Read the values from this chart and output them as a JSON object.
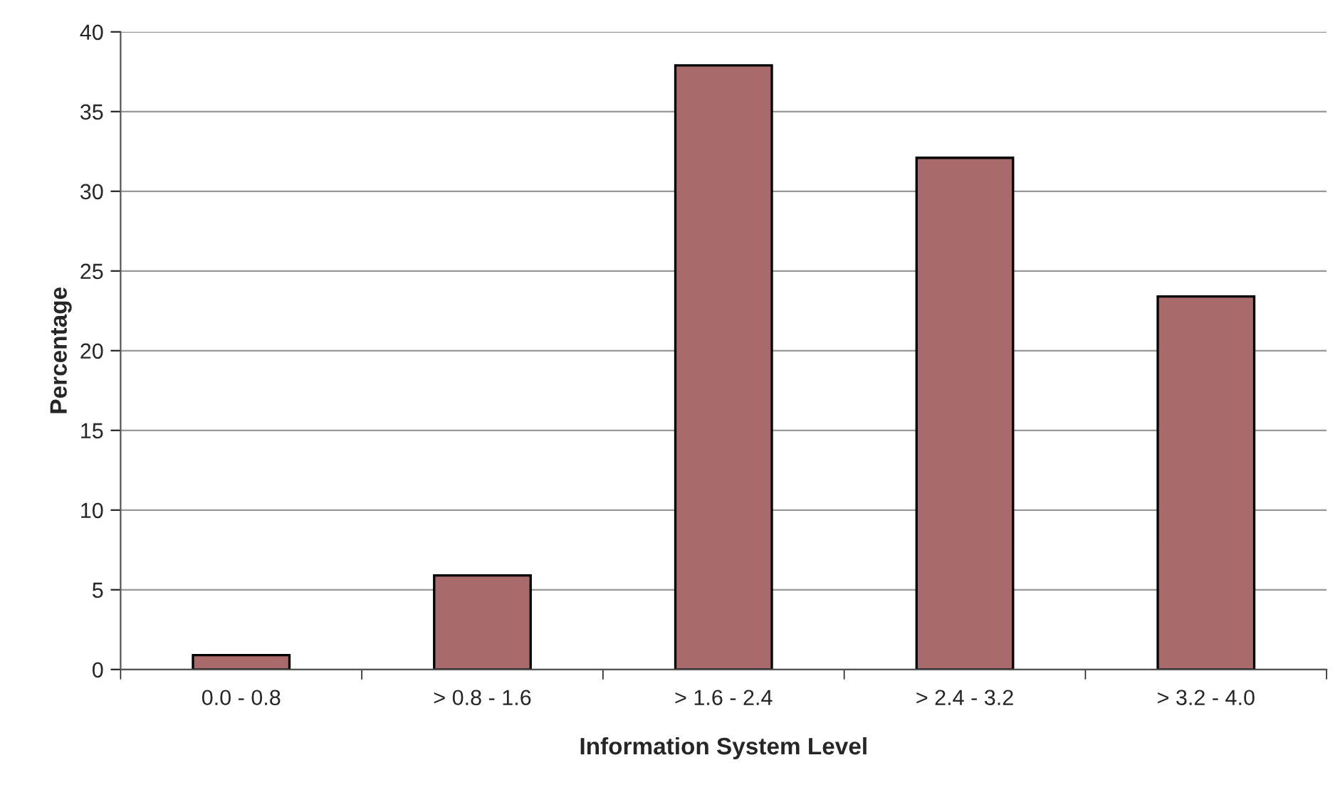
{
  "chart_data": {
    "type": "bar",
    "xlabel": "Information System Level",
    "ylabel": "Percentage",
    "categories": [
      "0.0 - 0.8",
      "> 0.8 - 1.6",
      "> 1.6 - 2.4",
      "> 2.4 - 3.2",
      "> 3.2 - 4.0"
    ],
    "values": [
      0.9,
      5.9,
      37.9,
      32.1,
      23.4
    ],
    "color": "#a86a6a",
    "ylim": [
      0,
      40
    ],
    "yticks": [
      0,
      5,
      10,
      15,
      20,
      25,
      30,
      35,
      40
    ],
    "grid": "y"
  }
}
